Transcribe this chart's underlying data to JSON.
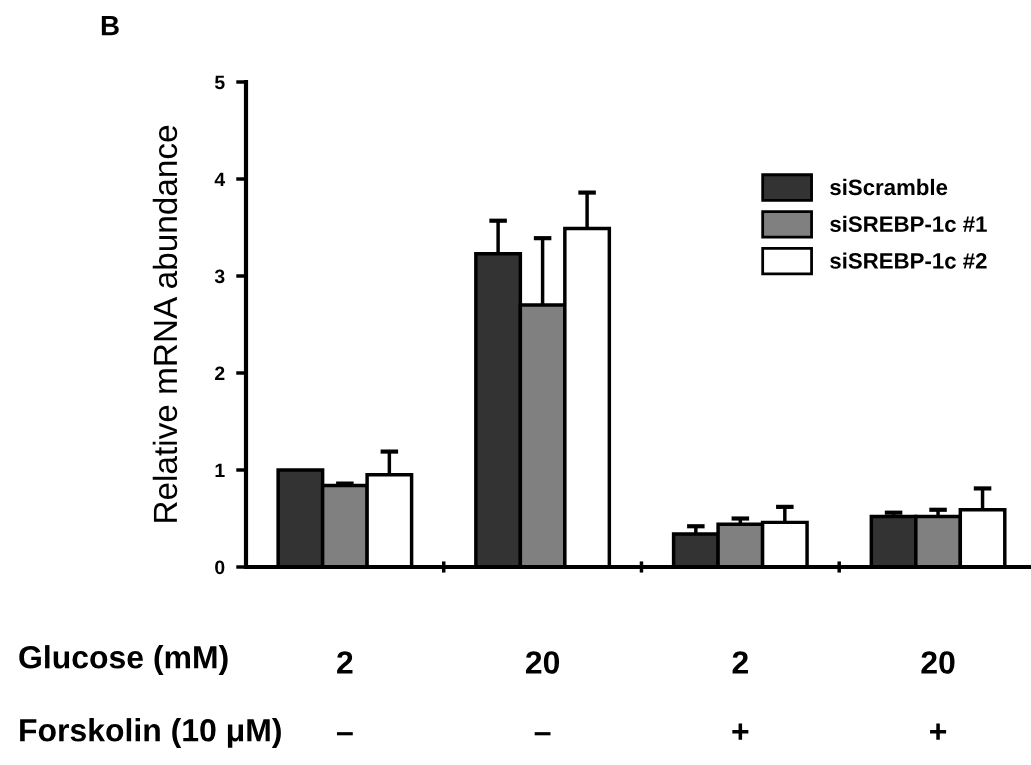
{
  "chart_data": {
    "type": "bar",
    "ylabel": "Relative mRNA abundance",
    "categories": [
      "2\n\n–",
      "20\n\n–",
      "2\n\n+",
      "20\n\n+"
    ],
    "series": [
      {
        "name": "siScramble",
        "color": "#333333",
        "values": [
          1.0,
          3.23,
          0.34,
          0.52
        ],
        "errors": [
          null,
          [
            3.23,
            3.57
          ],
          [
            0.34,
            0.42
          ],
          [
            0.52,
            0.56
          ]
        ]
      },
      {
        "name": "siSREBP-1c #1",
        "color": "#808080",
        "values": [
          0.84,
          2.7,
          0.44,
          0.52
        ],
        "errors": [
          [
            0.84,
            0.86
          ],
          [
            2.7,
            3.39
          ],
          [
            0.44,
            0.5
          ],
          [
            0.52,
            0.59
          ]
        ]
      },
      {
        "name": "siSREBP-1c #2",
        "color": "#ffffff",
        "values": [
          0.95,
          3.49,
          0.46,
          0.59
        ],
        "errors": [
          [
            0.95,
            1.19
          ],
          [
            3.49,
            3.86
          ],
          [
            0.46,
            0.62
          ],
          [
            0.59,
            0.81
          ]
        ]
      }
    ],
    "ylim": [
      0,
      5
    ],
    "yticks": [
      0,
      1,
      2,
      3,
      4,
      5
    ],
    "grid": false,
    "legend": "top right",
    "annotations": [
      "B",
      "Glucose (mM)",
      "Forskolin (10 μM)"
    ]
  }
}
